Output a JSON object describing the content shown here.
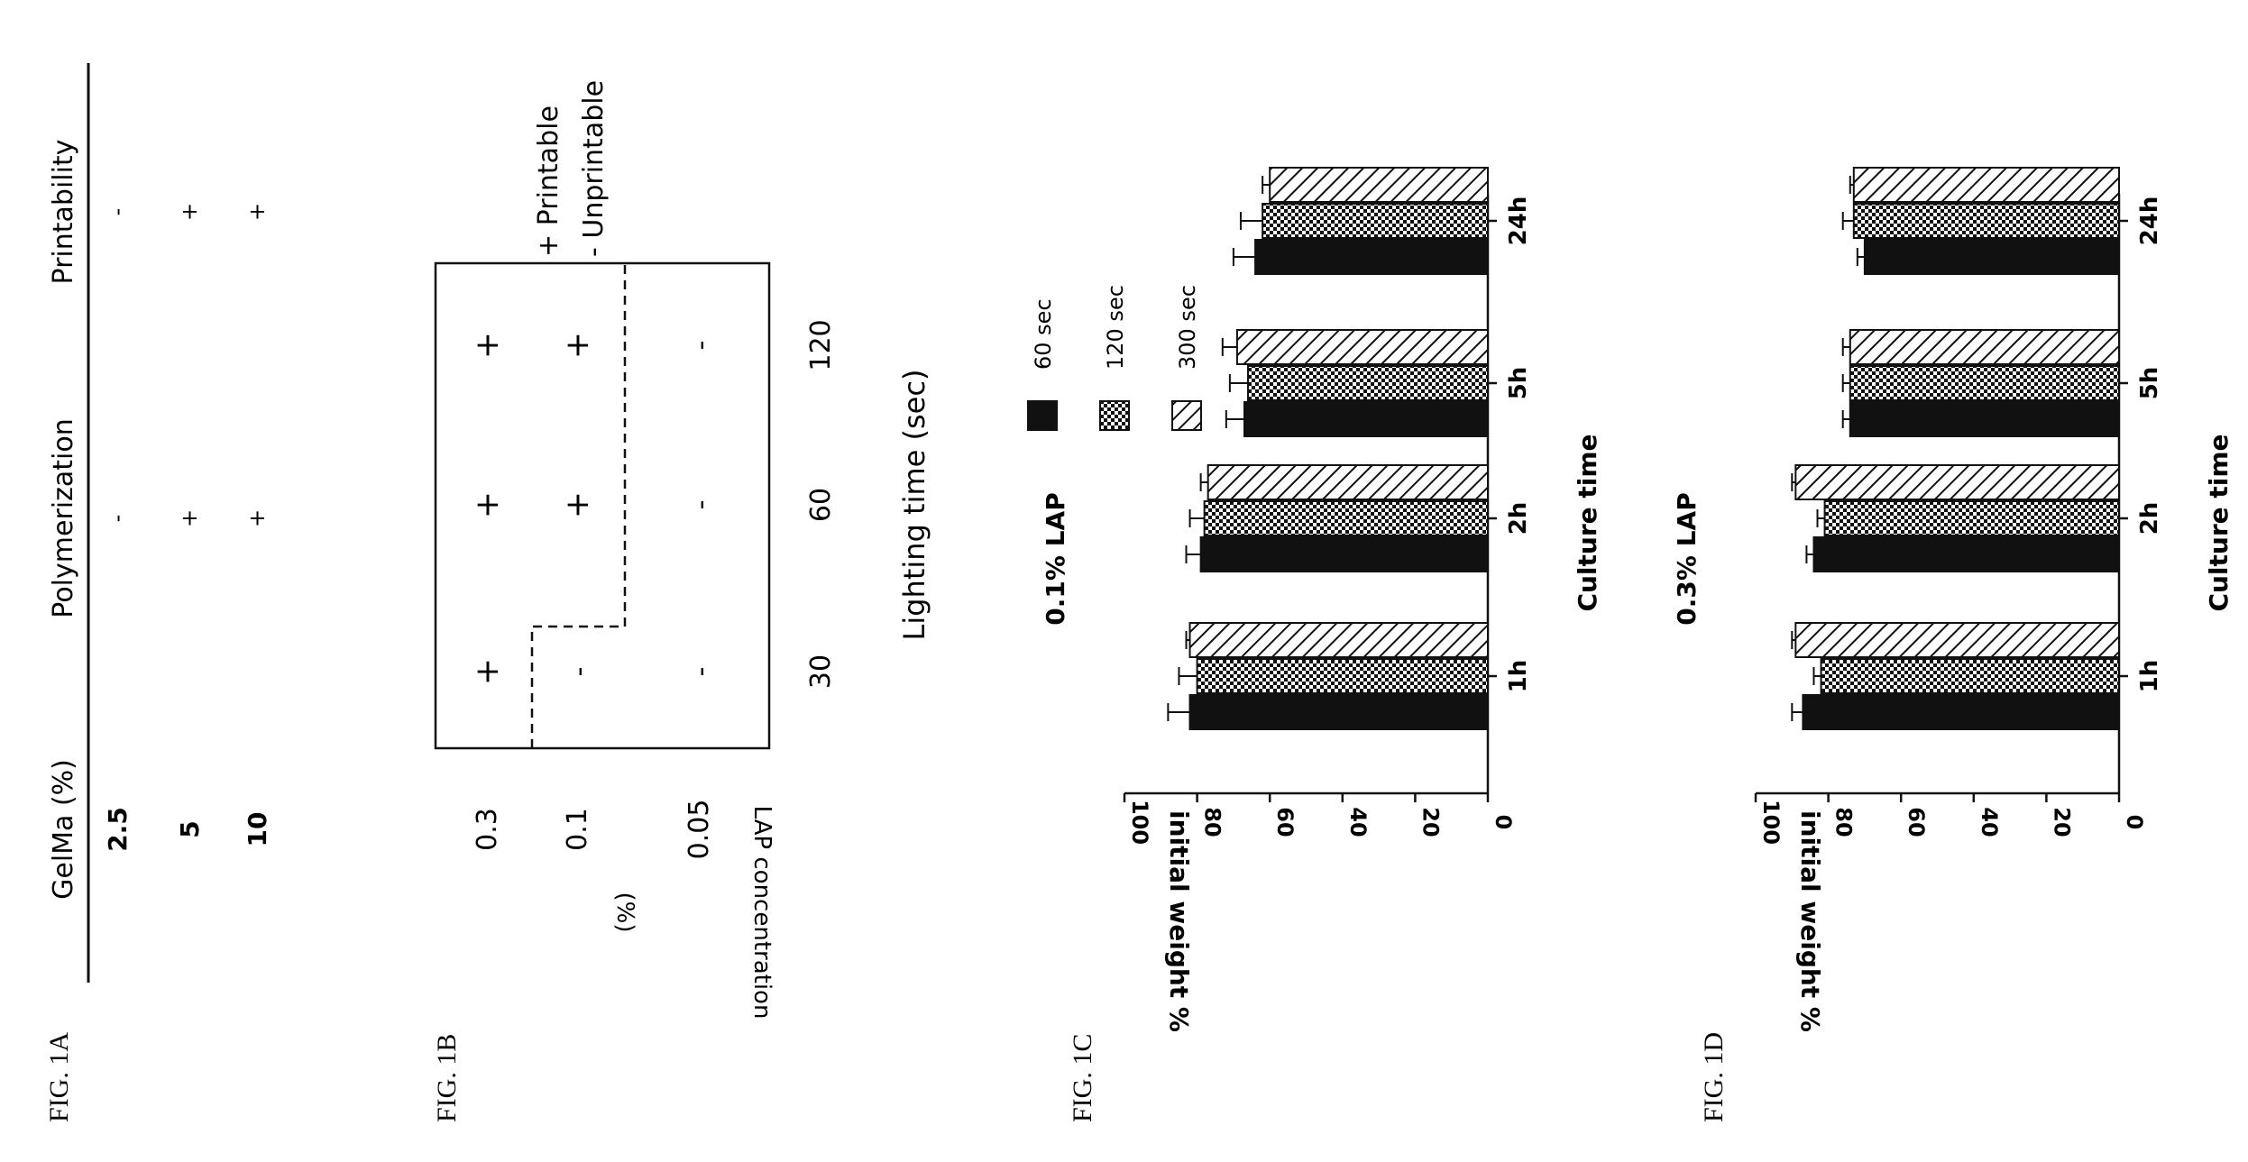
{
  "colors": {
    "ink": "#111111",
    "background": "#ffffff"
  },
  "fig1a": {
    "label": "FIG. 1A",
    "headers": [
      "GelMa (%)",
      "Polymerization",
      "Printability"
    ],
    "rows": [
      {
        "gelma": "2.5",
        "polymerization": "-",
        "printability": "-"
      },
      {
        "gelma": "5",
        "polymerization": "+",
        "printability": "+"
      },
      {
        "gelma": "10",
        "polymerization": "+",
        "printability": "+"
      }
    ]
  },
  "fig1b": {
    "label": "FIG. 1B",
    "ylabel_line1": "LAP concentration",
    "ylabel_line2": "(%)",
    "xlabel": "Lighting time (sec)",
    "concentrations": [
      "0.3",
      "0.1",
      "0.05"
    ],
    "times": [
      "30",
      "60",
      "120"
    ],
    "grid": [
      [
        "+",
        "+",
        "+"
      ],
      [
        "-",
        "+",
        "+"
      ],
      [
        "-",
        "-",
        "-"
      ]
    ],
    "legend": [
      "+ Printable",
      "- Unprintable"
    ]
  },
  "chart_data": [
    {
      "type": "bar",
      "figure_label": "FIG. 1C",
      "title": "0.1% LAP",
      "xlabel": "Culture time",
      "ylabel": "initial weight %",
      "ylim": [
        0,
        100
      ],
      "yticks": [
        "0",
        "20",
        "40",
        "60",
        "80",
        "100"
      ],
      "categories": [
        "1h",
        "2h",
        "5h",
        "24h"
      ],
      "legend_position": "top-right",
      "series": [
        {
          "name": "60 sec",
          "pattern": "solid",
          "values": [
            82,
            79,
            67,
            64
          ],
          "errors": [
            6,
            4,
            5,
            6
          ]
        },
        {
          "name": "120 sec",
          "pattern": "checker",
          "values": [
            80,
            78,
            66,
            62
          ],
          "errors": [
            5,
            4,
            5,
            6
          ]
        },
        {
          "name": "300 sec",
          "pattern": "hatch",
          "values": [
            82,
            77,
            69,
            60
          ],
          "errors": [
            1,
            2,
            4,
            2
          ]
        }
      ]
    },
    {
      "type": "bar",
      "figure_label": "FIG. 1D",
      "title": "0.3% LAP",
      "xlabel": "Culture time",
      "ylabel": "initial weight %",
      "ylim": [
        0,
        100
      ],
      "yticks": [
        "0",
        "20",
        "40",
        "60",
        "80",
        "100"
      ],
      "categories": [
        "1h",
        "2h",
        "5h",
        "24h"
      ],
      "series": [
        {
          "name": "60 sec",
          "pattern": "solid",
          "values": [
            87,
            84,
            74,
            70
          ],
          "errors": [
            3,
            2,
            2,
            2
          ]
        },
        {
          "name": "120 sec",
          "pattern": "checker",
          "values": [
            82,
            81,
            74,
            73
          ],
          "errors": [
            2,
            2,
            2,
            3
          ]
        },
        {
          "name": "300 sec",
          "pattern": "hatch",
          "values": [
            89,
            89,
            74,
            73
          ],
          "errors": [
            1,
            1,
            2,
            1
          ]
        }
      ]
    }
  ]
}
